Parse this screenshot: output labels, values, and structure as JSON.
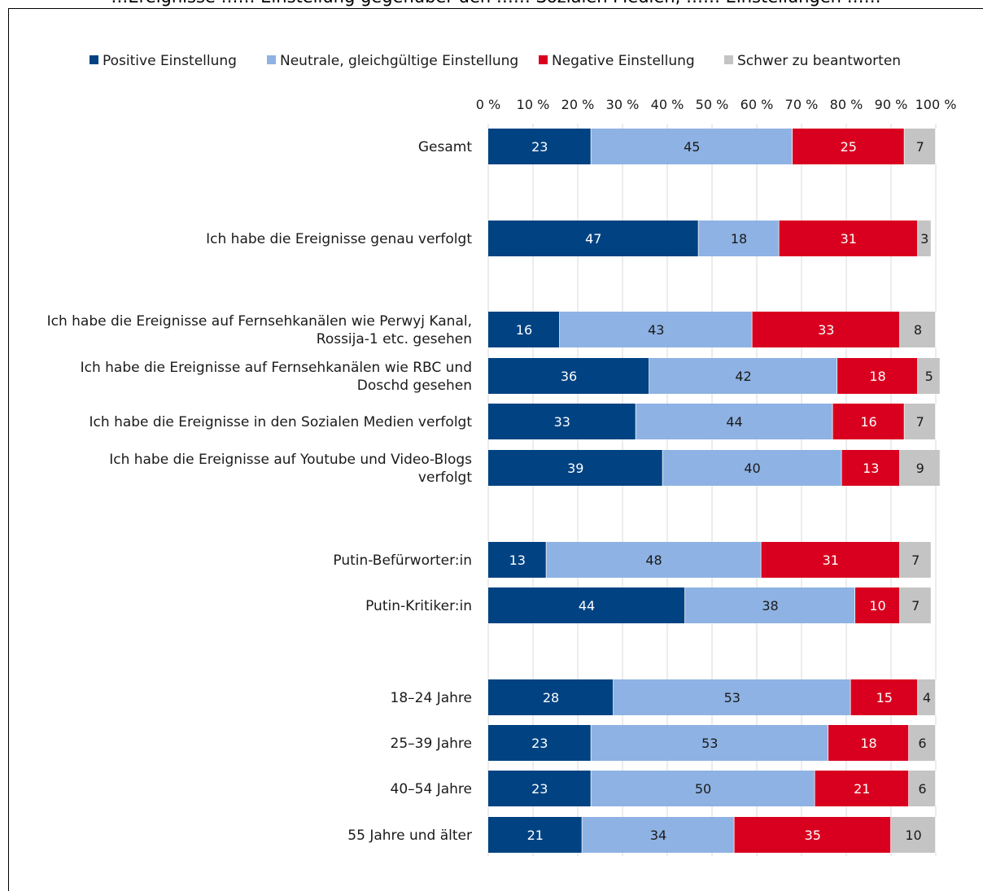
{
  "title": "…Ereignisse …… Einstellung gegenüber den …… Sozialen Medien, …… Einstellungen ……",
  "colors": {
    "positive": "#004282",
    "neutral": "#8eb2e3",
    "negative": "#d9001f",
    "hard": "#c4c4c4",
    "grid": "#d9d9d9"
  },
  "chart_data": {
    "type": "bar",
    "orientation": "horizontal",
    "stacked": true,
    "legend_position": "top",
    "grid": true,
    "xlim": [
      0,
      100
    ],
    "x_ticks": [
      "0 %",
      "10 %",
      "20 %",
      "30 %",
      "40 %",
      "50 %",
      "60 %",
      "70 %",
      "80 %",
      "90 %",
      "100 %"
    ],
    "categories": [
      [
        "Gesamt"
      ],
      [
        "Ich habe die Ereignisse genau verfolgt"
      ],
      [
        "Ich habe die Ereignisse auf Fernsehkanälen wie Perwyj Kanal,",
        "Rossija-1 etc. gesehen"
      ],
      [
        "Ich habe die Ereignisse auf Fernsehkanälen wie RBC und",
        "Doschd gesehen"
      ],
      [
        "Ich habe die Ereignisse in den Sozialen Medien verfolgt"
      ],
      [
        "Ich habe die Ereignisse auf Youtube und Video-Blogs",
        "verfolgt"
      ],
      [
        "Putin-Befürworter:in"
      ],
      [
        "Putin-Kritiker:in"
      ],
      [
        "18–24 Jahre"
      ],
      [
        "25–39 Jahre"
      ],
      [
        "40–54 Jahre"
      ],
      [
        "55 Jahre und älter"
      ]
    ],
    "series": [
      {
        "name": "Positive Einstellung",
        "values": [
          23,
          47,
          16,
          36,
          33,
          39,
          13,
          44,
          28,
          23,
          23,
          21
        ]
      },
      {
        "name": "Neutrale, gleichgültige Einstellung",
        "values": [
          45,
          18,
          43,
          42,
          44,
          40,
          48,
          38,
          53,
          53,
          50,
          34
        ]
      },
      {
        "name": "Negative Einstellung",
        "values": [
          25,
          31,
          33,
          18,
          16,
          13,
          31,
          10,
          15,
          18,
          21,
          35
        ]
      },
      {
        "name": "Schwer zu beantworten",
        "values": [
          7,
          3,
          8,
          5,
          7,
          9,
          7,
          7,
          4,
          6,
          6,
          10
        ]
      }
    ]
  }
}
